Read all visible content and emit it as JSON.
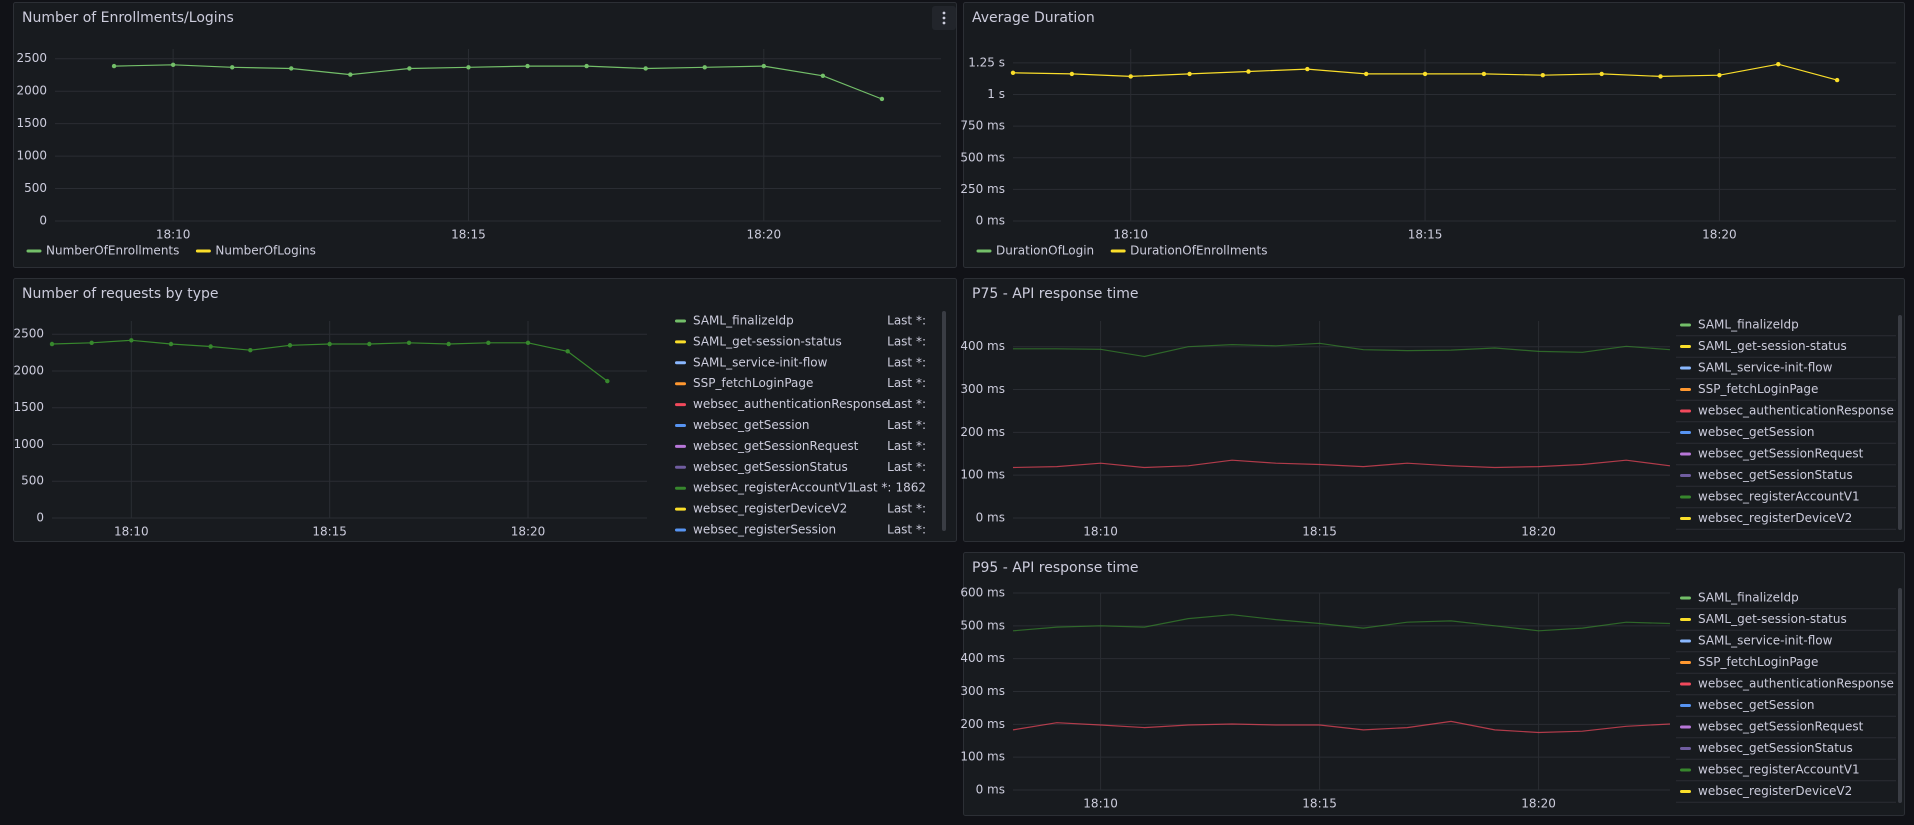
{
  "chart_data": [
    {
      "type": "line",
      "title": "Number of Enrollments/Logins",
      "x": [
        "18:09",
        "18:10",
        "18:11",
        "18:12",
        "18:13",
        "18:14",
        "18:15",
        "18:16",
        "18:17",
        "18:18",
        "18:19",
        "18:20",
        "18:21",
        "18:22"
      ],
      "series": [
        {
          "name": "NumberOfEnrollments",
          "color": "#73bf69",
          "values": [
            2387,
            2406,
            2368,
            2350,
            2256,
            2350,
            2368,
            2387,
            2387,
            2350,
            2368,
            2387,
            2237,
            1880
          ]
        },
        {
          "name": "NumberOfLogins",
          "color": "#fade2a"
        }
      ],
      "xlim": [
        "18:08",
        "18:23"
      ],
      "xticks": [
        "18:10",
        "18:15",
        "18:20"
      ],
      "ylim": [
        0,
        2650
      ],
      "yticks": [
        0,
        500,
        1000,
        1500,
        2000,
        2500
      ],
      "grid": true,
      "points": true,
      "legend": "bottom"
    },
    {
      "type": "line",
      "title": "Average Duration",
      "x": [
        "18:08",
        "18:09",
        "18:10",
        "18:11",
        "18:12",
        "18:13",
        "18:14",
        "18:15",
        "18:16",
        "18:17",
        "18:18",
        "18:19",
        "18:20",
        "18:21",
        "18:22"
      ],
      "series": [
        {
          "name": "DurationOfLogin",
          "color": "#73bf69"
        },
        {
          "name": "DurationOfEnrollments",
          "color": "#fade2a",
          "values": [
            1172,
            1163,
            1143,
            1163,
            1182,
            1201,
            1163,
            1163,
            1163,
            1153,
            1163,
            1143,
            1153,
            1240,
            1114
          ]
        }
      ],
      "xlim": [
        "18:08",
        "18:23"
      ],
      "xticks": [
        "18:10",
        "18:15",
        "18:20"
      ],
      "ylim": [
        0,
        1360
      ],
      "yticks": [
        {
          "value": 0,
          "label": "0 ms"
        },
        {
          "value": 250,
          "label": "250 ms"
        },
        {
          "value": 500,
          "label": "500 ms"
        },
        {
          "value": 750,
          "label": "750 ms"
        },
        {
          "value": 1000,
          "label": "1 s"
        },
        {
          "value": 1250,
          "label": "1.25 s"
        }
      ],
      "grid": true,
      "points": true,
      "legend": "bottom"
    },
    {
      "type": "line",
      "title": "Number of requests by type",
      "x": [
        "18:08",
        "18:09",
        "18:10",
        "18:11",
        "18:12",
        "18:13",
        "18:14",
        "18:15",
        "18:16",
        "18:17",
        "18:18",
        "18:19",
        "18:20",
        "18:21",
        "18:22"
      ],
      "series": [
        {
          "name": "SAML_finalizeIdp",
          "color": "#73bf69"
        },
        {
          "name": "SAML_get-session-status",
          "color": "#fade2a"
        },
        {
          "name": "SAML_service-init-flow",
          "color": "#8ab8ff"
        },
        {
          "name": "SSP_fetchLoginPage",
          "color": "#ff9830"
        },
        {
          "name": "websec_authenticationResponse",
          "color": "#f2495c"
        },
        {
          "name": "websec_getSession",
          "color": "#5794f2"
        },
        {
          "name": "websec_getSessionRequest",
          "color": "#b877d9"
        },
        {
          "name": "websec_getSessionStatus",
          "color": "#705da0"
        },
        {
          "name": "websec_registerAccountV1",
          "color": "#37872d",
          "values": [
            2367,
            2383,
            2417,
            2367,
            2333,
            2283,
            2350,
            2367,
            2367,
            2383,
            2367,
            2383,
            2383,
            2267,
            1862
          ]
        },
        {
          "name": "websec_registerDeviceV2",
          "color": "#fade2a"
        },
        {
          "name": "websec_registerSession",
          "color": "#5794f2"
        }
      ],
      "xlim": [
        "18:08",
        "18:23"
      ],
      "xticks": [
        "18:10",
        "18:15",
        "18:20"
      ],
      "ylim": [
        0,
        2680
      ],
      "yticks": [
        0,
        500,
        1000,
        1500,
        2000,
        2500
      ],
      "grid": true,
      "points": true,
      "legend": "right",
      "legend_stat": "Last *:"
    },
    {
      "type": "line",
      "title": "P75 - API response time",
      "x": [
        "18:08",
        "18:09",
        "18:10",
        "18:11",
        "18:12",
        "18:13",
        "18:14",
        "18:15",
        "18:16",
        "18:17",
        "18:18",
        "18:19",
        "18:20",
        "18:21",
        "18:22",
        "18:23"
      ],
      "series": [
        {
          "name": "SAML_finalizeIdp",
          "color": "#73bf69"
        },
        {
          "name": "SAML_get-session-status",
          "color": "#fade2a"
        },
        {
          "name": "SAML_service-init-flow",
          "color": "#8ab8ff"
        },
        {
          "name": "SSP_fetchLoginPage",
          "color": "#ff9830"
        },
        {
          "name": "websec_authenticationResponse",
          "color": "#f2495c",
          "values": [
            118,
            120,
            128,
            118,
            122,
            135,
            128,
            125,
            120,
            128,
            122,
            118,
            120,
            125,
            135,
            122
          ]
        },
        {
          "name": "websec_getSession",
          "color": "#5794f2"
        },
        {
          "name": "websec_getSessionRequest",
          "color": "#b877d9"
        },
        {
          "name": "websec_getSessionStatus",
          "color": "#705da0"
        },
        {
          "name": "websec_registerAccountV1",
          "color": "#37872d",
          "values": [
            395,
            395,
            394,
            377,
            400,
            405,
            402,
            408,
            393,
            391,
            392,
            397,
            389,
            387,
            401,
            393
          ]
        },
        {
          "name": "websec_registerDeviceV2",
          "color": "#fade2a"
        }
      ],
      "xlim": [
        "18:08",
        "18:23"
      ],
      "xticks": [
        "18:10",
        "18:15",
        "18:20"
      ],
      "ylim": [
        0,
        460
      ],
      "yticks": [
        {
          "value": 0,
          "label": "0 ms"
        },
        {
          "value": 100,
          "label": "100 ms"
        },
        {
          "value": 200,
          "label": "200 ms"
        },
        {
          "value": 300,
          "label": "300 ms"
        },
        {
          "value": 400,
          "label": "400 ms"
        }
      ],
      "grid": true,
      "points": false,
      "legend": "right"
    },
    {
      "type": "line",
      "title": "P95 - API response time",
      "x": [
        "18:08",
        "18:09",
        "18:10",
        "18:11",
        "18:12",
        "18:13",
        "18:14",
        "18:15",
        "18:16",
        "18:17",
        "18:18",
        "18:19",
        "18:20",
        "18:21",
        "18:22",
        "18:23"
      ],
      "series": [
        {
          "name": "SAML_finalizeIdp",
          "color": "#73bf69"
        },
        {
          "name": "SAML_get-session-status",
          "color": "#fade2a"
        },
        {
          "name": "SAML_service-init-flow",
          "color": "#8ab8ff"
        },
        {
          "name": "SSP_fetchLoginPage",
          "color": "#ff9830"
        },
        {
          "name": "websec_authenticationResponse",
          "color": "#f2495c",
          "values": [
            183,
            205,
            198,
            190,
            198,
            201,
            198,
            198,
            183,
            190,
            209,
            183,
            175,
            179,
            194,
            201
          ]
        },
        {
          "name": "websec_getSession",
          "color": "#5794f2"
        },
        {
          "name": "websec_getSessionRequest",
          "color": "#b877d9"
        },
        {
          "name": "websec_getSessionStatus",
          "color": "#705da0"
        },
        {
          "name": "websec_registerAccountV1",
          "color": "#37872d",
          "values": [
            485,
            496,
            500,
            496,
            522,
            534,
            519,
            507,
            493,
            511,
            515,
            500,
            485,
            493,
            511,
            507
          ]
        },
        {
          "name": "websec_registerDeviceV2",
          "color": "#fade2a"
        }
      ],
      "xlim": [
        "18:08",
        "18:23"
      ],
      "xticks": [
        "18:10",
        "18:15",
        "18:20"
      ],
      "ylim": [
        0,
        600
      ],
      "yticks": [
        {
          "value": 0,
          "label": "0 ms"
        },
        {
          "value": 100,
          "label": "100 ms"
        },
        {
          "value": 200,
          "label": "200 ms"
        },
        {
          "value": 300,
          "label": "300 ms"
        },
        {
          "value": 400,
          "label": "400 ms"
        },
        {
          "value": 500,
          "label": "500 ms"
        },
        {
          "value": 600,
          "label": "600 ms"
        }
      ],
      "grid": true,
      "points": false,
      "legend": "right"
    }
  ]
}
